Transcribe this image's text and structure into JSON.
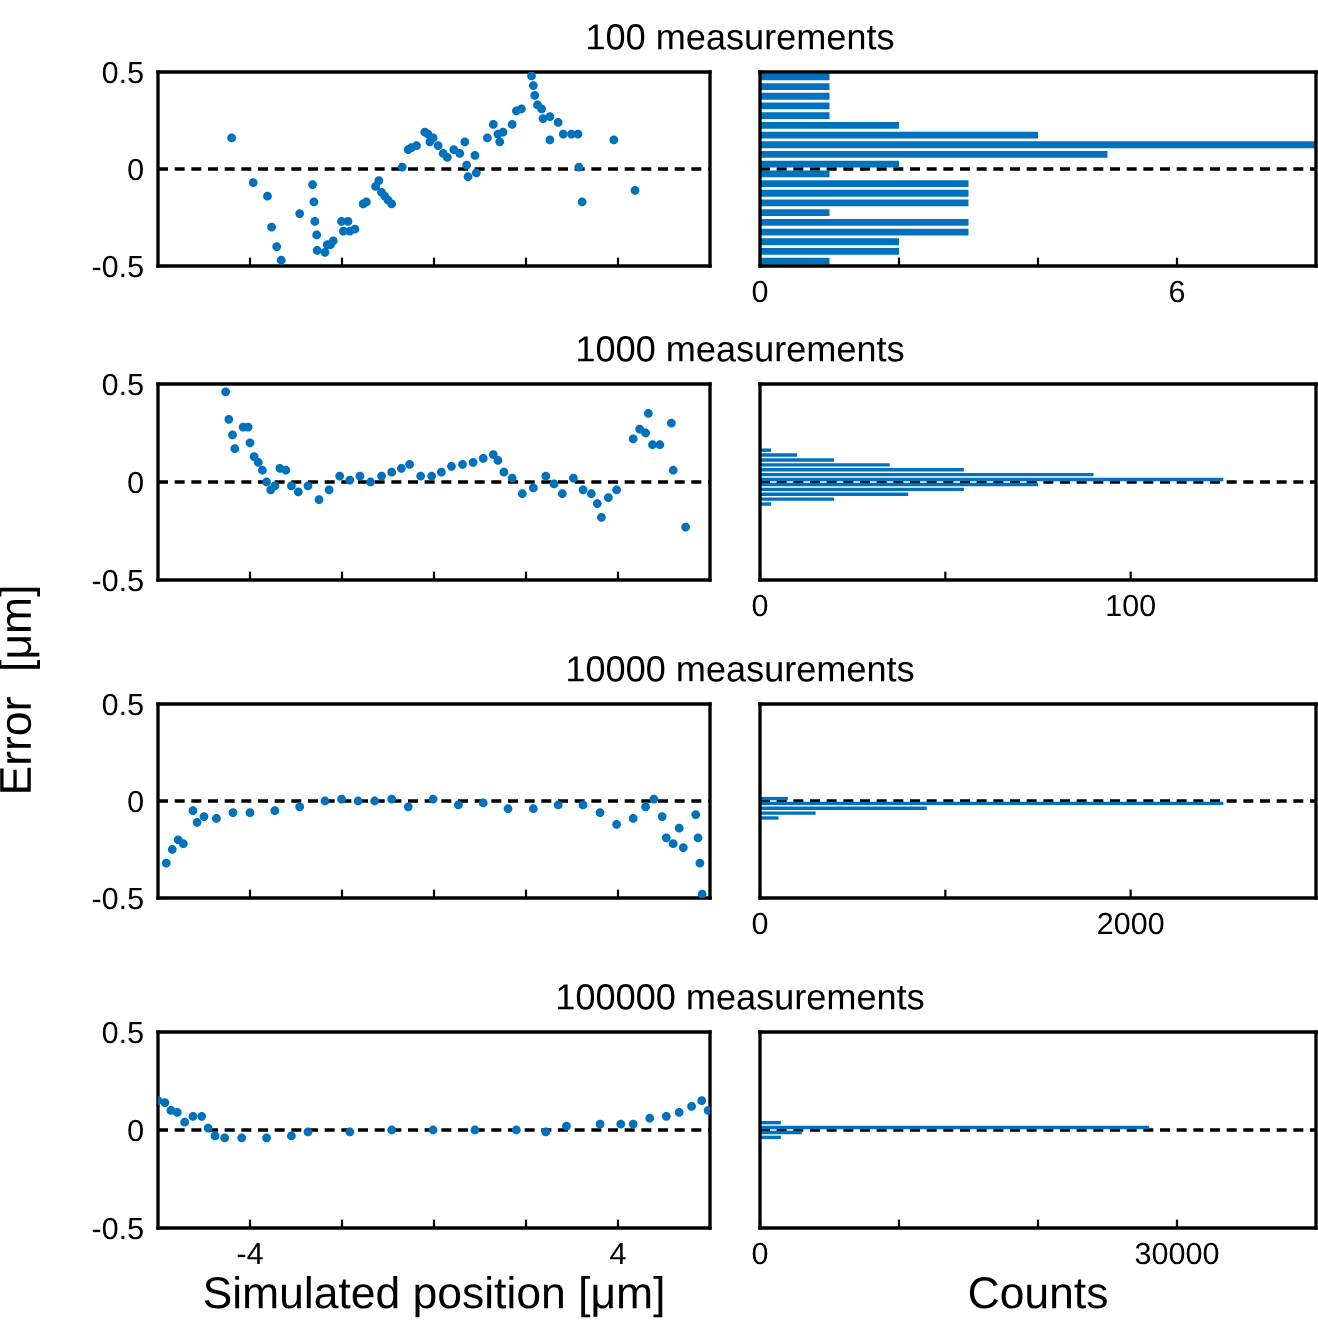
{
  "chart_data": [
    {
      "type": "scatter",
      "title": "100 measurements",
      "color": "#0072bd",
      "marker": "circle",
      "tick_labels": "y",
      "xlim": [
        -6,
        6
      ],
      "xticks": [
        {
          "value": -4,
          "label": null
        },
        {
          "value": -2,
          "label": null
        },
        {
          "value": 0,
          "label": null
        },
        {
          "value": 2,
          "label": null
        },
        {
          "value": 4,
          "label": null
        }
      ],
      "ylim": [
        -0.5,
        0.5
      ],
      "yticks": [
        -0.5,
        0,
        0.5
      ],
      "ref_lines": [
        {
          "axis": "y",
          "value": 0,
          "color": "#000000",
          "line_style": "dashed"
        }
      ],
      "x": [
        -4.4,
        -3.93,
        -3.62,
        -3.53,
        -3.42,
        -3.32,
        -2.92,
        -2.64,
        -2.61,
        -2.59,
        -2.55,
        -2.54,
        -2.37,
        -2.32,
        -2.25,
        -2.19,
        -2.01,
        -1.97,
        -1.87,
        -1.83,
        -1.72,
        -1.54,
        -1.47,
        -1.27,
        -1.2,
        -1.14,
        -1.07,
        -1.0,
        -0.92,
        -0.69,
        -0.56,
        -0.49,
        -0.38,
        -0.2,
        -0.13,
        -0.09,
        -0.02,
        0.09,
        0.2,
        0.29,
        0.43,
        0.56,
        0.67,
        0.71,
        0.74,
        0.89,
        0.92,
        1.16,
        1.29,
        1.39,
        1.43,
        1.5,
        1.7,
        1.79,
        1.9,
        2.12,
        2.16,
        2.19,
        2.25,
        2.34,
        2.37,
        2.52,
        2.52,
        2.7,
        2.81,
        2.99,
        3.13,
        3.15,
        3.22,
        3.91,
        4.37
      ],
      "values": [
        0.16,
        -0.07,
        -0.14,
        -0.3,
        -0.4,
        -0.47,
        -0.23,
        -0.08,
        -0.17,
        -0.27,
        -0.34,
        -0.42,
        -0.43,
        -0.39,
        -0.39,
        -0.37,
        -0.27,
        -0.32,
        -0.27,
        -0.32,
        -0.31,
        -0.18,
        -0.17,
        -0.09,
        -0.06,
        -0.12,
        -0.14,
        -0.16,
        -0.18,
        0.01,
        0.1,
        0.11,
        0.12,
        0.19,
        0.18,
        0.14,
        0.16,
        0.12,
        0.08,
        0.06,
        0.1,
        0.08,
        0.14,
        0.02,
        -0.04,
        0.07,
        -0.02,
        0.16,
        0.23,
        0.18,
        0.14,
        0.19,
        0.23,
        0.3,
        0.31,
        0.48,
        0.43,
        0.38,
        0.33,
        0.31,
        0.26,
        0.27,
        0.15,
        0.24,
        0.18,
        0.18,
        0.18,
        0.01,
        -0.17,
        0.15,
        -0.11
      ]
    },
    {
      "type": "histogram",
      "orientation": "horizontal",
      "color": "#0072bd",
      "tick_labels": "x",
      "xlim": [
        0,
        8
      ],
      "xticks": [
        0,
        {
          "value": 2,
          "label": null
        },
        {
          "value": 4,
          "label": null
        },
        6
      ],
      "ylim": [
        -0.5,
        0.5
      ],
      "yticks": [
        {
          "value": -0.5,
          "label": null
        },
        {
          "value": 0,
          "label": null
        },
        {
          "value": 0.5,
          "label": null
        }
      ],
      "ref_lines": [
        {
          "axis": "y",
          "value": 0,
          "color": "#000000",
          "line_style": "dashed"
        }
      ],
      "bins": [
        -0.5,
        -0.45,
        -0.4,
        -0.35,
        -0.3,
        -0.25,
        -0.2,
        -0.15,
        -0.1,
        -0.05,
        0,
        0.05,
        0.1,
        0.15,
        0.2,
        0.25,
        0.3,
        0.35,
        0.4,
        0.45,
        0.5
      ],
      "values": [
        1,
        2,
        2,
        3,
        3,
        1,
        3,
        3,
        3,
        1,
        2,
        5,
        8,
        4,
        2,
        1,
        1,
        1,
        1,
        1
      ]
    },
    {
      "type": "scatter",
      "title": "1000 measurements",
      "ylabel": "Error  [μm]",
      "color": "#0072bd",
      "marker": "circle",
      "tick_labels": "y",
      "xlim": [
        -6,
        6
      ],
      "xticks": [
        {
          "value": -4,
          "label": null
        },
        {
          "value": -2,
          "label": null
        },
        {
          "value": 0,
          "label": null
        },
        {
          "value": 2,
          "label": null
        },
        {
          "value": 4,
          "label": null
        }
      ],
      "ylim": [
        -0.5,
        0.5
      ],
      "yticks": [
        -0.5,
        0,
        0.5
      ],
      "ref_lines": [
        {
          "axis": "y",
          "value": 0,
          "color": "#000000",
          "line_style": "dashed"
        }
      ],
      "x": [
        -4.53,
        -4.46,
        -4.38,
        -4.33,
        -4.15,
        -4.04,
        -4.0,
        -3.91,
        -3.82,
        -3.73,
        -3.64,
        -3.55,
        -3.46,
        -3.35,
        -3.22,
        -3.1,
        -2.95,
        -2.74,
        -2.5,
        -2.28,
        -2.05,
        -1.83,
        -1.61,
        -1.38,
        -1.14,
        -0.92,
        -0.71,
        -0.53,
        -0.29,
        -0.05,
        0.16,
        0.38,
        0.62,
        0.85,
        1.07,
        1.29,
        1.39,
        1.52,
        1.7,
        1.92,
        2.16,
        2.43,
        2.61,
        2.79,
        3.03,
        3.24,
        3.42,
        3.55,
        3.64,
        3.79,
        3.97,
        4.33,
        4.47,
        4.6,
        4.66,
        4.75,
        4.91,
        5.16,
        5.2,
        5.47
      ],
      "values": [
        0.46,
        0.32,
        0.24,
        0.17,
        0.28,
        0.28,
        0.2,
        0.13,
        0.1,
        0.06,
        0.0,
        -0.04,
        -0.02,
        0.07,
        0.06,
        -0.02,
        -0.05,
        -0.02,
        -0.09,
        -0.04,
        0.03,
        0.01,
        0.03,
        0.0,
        0.03,
        0.05,
        0.07,
        0.09,
        0.03,
        0.03,
        0.05,
        0.08,
        0.09,
        0.1,
        0.12,
        0.14,
        0.11,
        0.05,
        0.02,
        -0.06,
        -0.03,
        0.03,
        -0.01,
        -0.06,
        0.02,
        -0.04,
        -0.06,
        -0.11,
        -0.18,
        -0.08,
        -0.04,
        0.22,
        0.27,
        0.25,
        0.35,
        0.19,
        0.19,
        0.3,
        0.06,
        -0.23
      ]
    },
    {
      "type": "histogram",
      "orientation": "horizontal",
      "color": "#0072bd",
      "tick_labels": "x",
      "xlim": [
        0,
        150
      ],
      "xticks": [
        0,
        {
          "value": 50,
          "label": null
        },
        100
      ],
      "ylim": [
        -0.5,
        0.5
      ],
      "yticks": [
        {
          "value": -0.5,
          "label": null
        },
        {
          "value": 0,
          "label": null
        },
        {
          "value": 0.5,
          "label": null
        }
      ],
      "ref_lines": [
        {
          "axis": "y",
          "value": 0,
          "color": "#000000",
          "line_style": "dashed"
        }
      ],
      "bins": [
        -0.5,
        -0.475,
        -0.45,
        -0.425,
        -0.4,
        -0.375,
        -0.35,
        -0.325,
        -0.3,
        -0.275,
        -0.25,
        -0.225,
        -0.2,
        -0.175,
        -0.15,
        -0.125,
        -0.1,
        -0.075,
        -0.05,
        -0.025,
        0,
        0.025,
        0.05,
        0.075,
        0.1,
        0.125,
        0.15,
        0.175,
        0.2,
        0.225,
        0.25,
        0.275,
        0.3,
        0.325,
        0.35,
        0.375,
        0.4,
        0.425,
        0.45,
        0.475,
        0.5
      ],
      "values": [
        0,
        0,
        0,
        0,
        0,
        0,
        0,
        0,
        0,
        0,
        0,
        0,
        0,
        0,
        0,
        3,
        20,
        40,
        55,
        75,
        125,
        90,
        55,
        35,
        20,
        10,
        3,
        0,
        0,
        0,
        0,
        0,
        0,
        0,
        0,
        0,
        0,
        0,
        0,
        0
      ]
    },
    {
      "type": "scatter",
      "title": "10000 measurements",
      "color": "#0072bd",
      "marker": "circle",
      "tick_labels": "y",
      "xlim": [
        -6,
        6
      ],
      "xticks": [
        {
          "value": -4,
          "label": null
        },
        {
          "value": -2,
          "label": null
        },
        {
          "value": 0,
          "label": null
        },
        {
          "value": 2,
          "label": null
        },
        {
          "value": 4,
          "label": null
        }
      ],
      "ylim": [
        -0.5,
        0.5
      ],
      "yticks": [
        -0.5,
        0,
        0.5
      ],
      "ref_lines": [
        {
          "axis": "y",
          "value": 0,
          "color": "#000000",
          "line_style": "dashed"
        }
      ],
      "x": [
        -5.82,
        -5.69,
        -5.56,
        -5.45,
        -5.24,
        -5.15,
        -5.0,
        -4.73,
        -4.37,
        -4.0,
        -3.46,
        -2.92,
        -2.37,
        -2.01,
        -1.65,
        -1.29,
        -0.92,
        -0.56,
        -0.02,
        0.53,
        1.07,
        1.61,
        2.16,
        2.7,
        3.24,
        3.61,
        3.97,
        4.33,
        4.6,
        4.78,
        4.96,
        5.05,
        5.2,
        5.33,
        5.42,
        5.69,
        5.74,
        5.78,
        5.83
      ],
      "values": [
        -0.32,
        -0.25,
        -0.2,
        -0.22,
        -0.05,
        -0.11,
        -0.08,
        -0.09,
        -0.06,
        -0.06,
        -0.05,
        -0.03,
        0.0,
        0.01,
        0.0,
        0.0,
        0.01,
        -0.03,
        0.01,
        -0.02,
        -0.01,
        -0.04,
        -0.04,
        -0.02,
        -0.02,
        -0.06,
        -0.12,
        -0.09,
        -0.03,
        0.01,
        -0.08,
        -0.19,
        -0.22,
        -0.14,
        -0.24,
        -0.07,
        -0.19,
        -0.32,
        -0.48
      ]
    },
    {
      "type": "histogram",
      "orientation": "horizontal",
      "color": "#0072bd",
      "tick_labels": "x",
      "xlim": [
        0,
        3000
      ],
      "xticks": [
        0,
        {
          "value": 1000,
          "label": null
        },
        2000
      ],
      "ylim": [
        -0.5,
        0.5
      ],
      "yticks": [
        {
          "value": -0.5,
          "label": null
        },
        {
          "value": 0,
          "label": null
        },
        {
          "value": 0.5,
          "label": null
        }
      ],
      "ref_lines": [
        {
          "axis": "y",
          "value": 0,
          "color": "#000000",
          "line_style": "dashed"
        }
      ],
      "bins": [
        -0.5,
        -0.475,
        -0.45,
        -0.425,
        -0.4,
        -0.375,
        -0.35,
        -0.325,
        -0.3,
        -0.275,
        -0.25,
        -0.225,
        -0.2,
        -0.175,
        -0.15,
        -0.125,
        -0.1,
        -0.075,
        -0.05,
        -0.025,
        0,
        0.025,
        0.05,
        0.075,
        0.1,
        0.125,
        0.15,
        0.175,
        0.2,
        0.225,
        0.25,
        0.275,
        0.3,
        0.325,
        0.35,
        0.375,
        0.4,
        0.425,
        0.45,
        0.475,
        0.5
      ],
      "values": [
        0,
        0,
        0,
        0,
        0,
        0,
        0,
        0,
        0,
        0,
        0,
        0,
        0,
        0,
        0,
        0,
        100,
        300,
        900,
        2500,
        150,
        0,
        0,
        0,
        0,
        0,
        0,
        0,
        0,
        0,
        0,
        0,
        0,
        0,
        0,
        0,
        0,
        0,
        0,
        0
      ]
    },
    {
      "type": "scatter",
      "title": "100000 measurements",
      "xlabel": "Simulated position [μm]",
      "color": "#0072bd",
      "marker": "circle",
      "xlim": [
        -6,
        6
      ],
      "xticks": [
        -4,
        {
          "value": -2,
          "label": null
        },
        {
          "value": 0,
          "label": null
        },
        {
          "value": 2,
          "label": null
        },
        4
      ],
      "ylim": [
        -0.5,
        0.5
      ],
      "yticks": [
        -0.5,
        0,
        0.5
      ],
      "ref_lines": [
        {
          "axis": "y",
          "value": 0,
          "color": "#000000",
          "line_style": "dashed"
        }
      ],
      "x": [
        -6.0,
        -5.85,
        -5.72,
        -5.58,
        -5.42,
        -5.24,
        -5.05,
        -4.91,
        -4.76,
        -4.55,
        -4.18,
        -3.64,
        -3.1,
        -2.74,
        -1.83,
        -0.92,
        -0.02,
        0.89,
        1.79,
        2.43,
        2.88,
        3.61,
        4.06,
        4.33,
        4.69,
        5.05,
        5.33,
        5.6,
        5.82,
        5.96
      ],
      "values": [
        0.15,
        0.14,
        0.1,
        0.09,
        0.04,
        0.07,
        0.07,
        0.01,
        -0.03,
        -0.04,
        -0.04,
        -0.04,
        -0.03,
        -0.01,
        -0.01,
        0.0,
        0.0,
        0.0,
        0.0,
        -0.01,
        0.02,
        0.03,
        0.03,
        0.03,
        0.06,
        0.07,
        0.09,
        0.12,
        0.15,
        0.1
      ]
    },
    {
      "type": "histogram",
      "orientation": "horizontal",
      "xlabel": "Counts",
      "color": "#0072bd",
      "tick_labels": "x",
      "xlim": [
        0,
        40000
      ],
      "xticks": [
        0,
        {
          "value": 10000,
          "label": null
        },
        {
          "value": 20000,
          "label": null
        },
        30000
      ],
      "ylim": [
        -0.5,
        0.5
      ],
      "yticks": [
        {
          "value": -0.5,
          "label": null
        },
        {
          "value": 0,
          "label": null
        },
        {
          "value": 0.5,
          "label": null
        }
      ],
      "ref_lines": [
        {
          "axis": "y",
          "value": 0,
          "color": "#000000",
          "line_style": "dashed"
        }
      ],
      "bins": [
        -0.5,
        -0.475,
        -0.45,
        -0.425,
        -0.4,
        -0.375,
        -0.35,
        -0.325,
        -0.3,
        -0.275,
        -0.25,
        -0.225,
        -0.2,
        -0.175,
        -0.15,
        -0.125,
        -0.1,
        -0.075,
        -0.05,
        -0.025,
        0,
        0.025,
        0.05,
        0.075,
        0.1,
        0.125,
        0.15,
        0.175,
        0.2,
        0.225,
        0.25,
        0.275,
        0.3,
        0.325,
        0.35,
        0.375,
        0.4,
        0.425,
        0.45,
        0.475,
        0.5
      ],
      "values": [
        0,
        0,
        0,
        0,
        0,
        0,
        0,
        0,
        0,
        0,
        0,
        0,
        0,
        0,
        0,
        0,
        0,
        0,
        1500,
        3000,
        28000,
        1500,
        0,
        0,
        0,
        0,
        0,
        0,
        0,
        0,
        0,
        0,
        0,
        0,
        0,
        0,
        0,
        0,
        0,
        0
      ]
    }
  ]
}
